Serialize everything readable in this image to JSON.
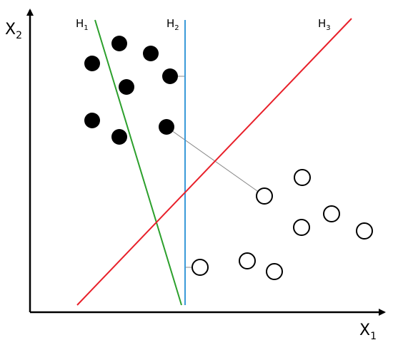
{
  "x_axis": {
    "base": "X",
    "sub": "1"
  },
  "y_axis": {
    "base": "X",
    "sub": "2"
  },
  "hyperplanes": [
    {
      "base": "H",
      "sub": "1"
    },
    {
      "base": "H",
      "sub": "2"
    },
    {
      "base": "H",
      "sub": "3"
    }
  ]
}
